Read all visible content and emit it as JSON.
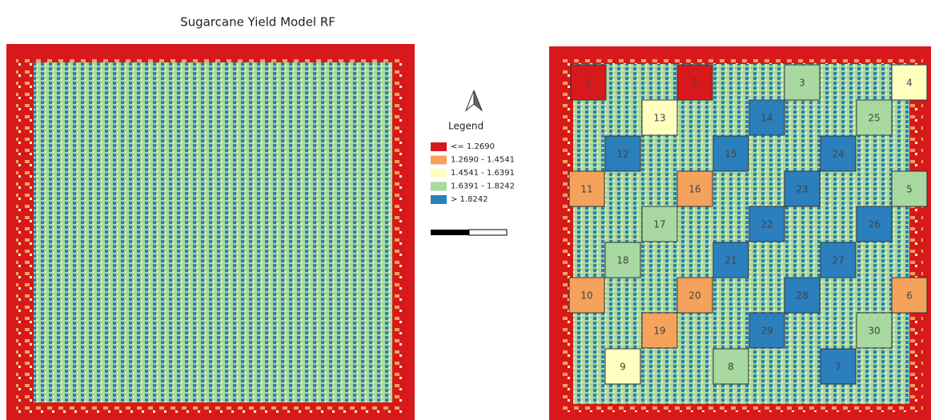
{
  "title": "Sugarcane Yield Model RF",
  "legend": {
    "title": "Legend",
    "items": [
      {
        "label": "<= 1.2690",
        "color": "#d7191c"
      },
      {
        "label": "1.2690 - 1.4541",
        "color": "#f4a25c"
      },
      {
        "label": "1.4541 - 1.6391",
        "color": "#ffffc0"
      },
      {
        "label": "1.6391 - 1.8242",
        "color": "#a8d9a0"
      },
      {
        "label": "> 1.8242",
        "color": "#2b7fbd"
      }
    ]
  },
  "plots": [
    {
      "label": "1",
      "color": "#d7191c"
    },
    {
      "label": "2",
      "color": "#d7191c"
    },
    {
      "label": "3",
      "color": "#a8d9a0"
    },
    {
      "label": "4",
      "color": "#ffffc0"
    },
    {
      "label": "5",
      "color": "#a8d9a0"
    },
    {
      "label": "6",
      "color": "#f4a25c"
    },
    {
      "label": "7",
      "color": "#2b7fbd"
    },
    {
      "label": "8",
      "color": "#a8d9a0"
    },
    {
      "label": "9",
      "color": "#ffffc0"
    },
    {
      "label": "10",
      "color": "#f4a25c"
    },
    {
      "label": "11",
      "color": "#f4a25c"
    },
    {
      "label": "12",
      "color": "#2b7fbd"
    },
    {
      "label": "13",
      "color": "#ffffc0"
    },
    {
      "label": "14",
      "color": "#2b7fbd"
    },
    {
      "label": "15",
      "color": "#2b7fbd"
    },
    {
      "label": "16",
      "color": "#f4a25c"
    },
    {
      "label": "17",
      "color": "#a8d9a0"
    },
    {
      "label": "18",
      "color": "#a8d9a0"
    },
    {
      "label": "19",
      "color": "#f4a25c"
    },
    {
      "label": "20",
      "color": "#f4a25c"
    },
    {
      "label": "21",
      "color": "#2b7fbd"
    },
    {
      "label": "22",
      "color": "#2b7fbd"
    },
    {
      "label": "23",
      "color": "#2b7fbd"
    },
    {
      "label": "24",
      "color": "#2b7fbd"
    },
    {
      "label": "25",
      "color": "#a8d9a0"
    },
    {
      "label": "26",
      "color": "#2b7fbd"
    },
    {
      "label": "27",
      "color": "#2b7fbd"
    },
    {
      "label": "28",
      "color": "#2b7fbd"
    },
    {
      "label": "29",
      "color": "#2b7fbd"
    },
    {
      "label": "30",
      "color": "#a8d9a0"
    }
  ]
}
